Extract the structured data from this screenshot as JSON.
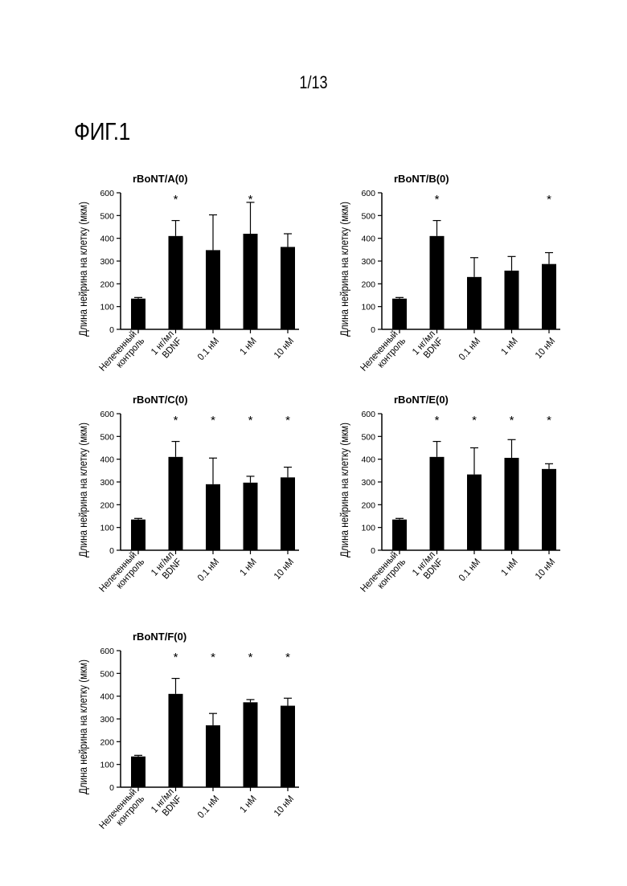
{
  "page": {
    "page_number": "1/13",
    "figure_label": "ФИГ.1"
  },
  "chart_data": [
    {
      "type": "bar",
      "title": "rBoNT/A(0)",
      "ylabel": "Длина нейрина на клетку (мкм)",
      "xlabel": "",
      "ylim": [
        0,
        600
      ],
      "yticks": [
        0,
        100,
        200,
        300,
        400,
        500,
        600
      ],
      "categories": [
        "Нелеченный контроль",
        "1 нг/мл BDNF",
        "0.1 нМ",
        "1 нМ",
        "10 нМ"
      ],
      "category_lines": [
        [
          "Нелеченный",
          "контроль"
        ],
        [
          "1 нг/мл",
          "BDNF"
        ],
        [
          "0.1 нМ"
        ],
        [
          "1 нМ"
        ],
        [
          "10 нМ"
        ]
      ],
      "values": [
        135,
        410,
        348,
        420,
        362
      ],
      "error_plus": [
        5,
        68,
        155,
        138,
        58
      ],
      "significance": [
        "",
        "*",
        "",
        "*",
        ""
      ],
      "bar_color": "#000000"
    },
    {
      "type": "bar",
      "title": "rBoNT/B(0)",
      "ylabel": "Длина нейрина на клетку (мкм)",
      "xlabel": "",
      "ylim": [
        0,
        600
      ],
      "yticks": [
        0,
        100,
        200,
        300,
        400,
        500,
        600
      ],
      "categories": [
        "Нелеченный контроль",
        "1 нг/мл BDNF",
        "0.1 нМ",
        "1 нМ",
        "10 нМ"
      ],
      "category_lines": [
        [
          "Нелеченный",
          "контроль"
        ],
        [
          "1 нг/мл",
          "BDNF"
        ],
        [
          "0.1 нМ"
        ],
        [
          "1 нМ"
        ],
        [
          "10 нМ"
        ]
      ],
      "values": [
        135,
        410,
        230,
        258,
        287
      ],
      "error_plus": [
        5,
        68,
        85,
        62,
        50
      ],
      "significance": [
        "",
        "*",
        "",
        "",
        "*"
      ],
      "bar_color": "#000000"
    },
    {
      "type": "bar",
      "title": "rBoNT/C(0)",
      "ylabel": "Длина нейрина на клетку (мкм)",
      "xlabel": "",
      "ylim": [
        0,
        600
      ],
      "yticks": [
        0,
        100,
        200,
        300,
        400,
        500,
        600
      ],
      "categories": [
        "Нелеченный контроль",
        "1 нг/мл BDNF",
        "0.1 нМ",
        "1 нМ",
        "10 нМ"
      ],
      "category_lines": [
        [
          "Нелеченный",
          "контроль"
        ],
        [
          "1 нг/мл",
          "BDNF"
        ],
        [
          "0.1 нМ"
        ],
        [
          "1 нМ"
        ],
        [
          "10 нМ"
        ]
      ],
      "values": [
        135,
        410,
        290,
        297,
        320
      ],
      "error_plus": [
        5,
        68,
        115,
        28,
        45
      ],
      "significance": [
        "",
        "*",
        "*",
        "*",
        "*"
      ],
      "bar_color": "#000000"
    },
    {
      "type": "bar",
      "title": "rBoNT/E(0)",
      "ylabel": "Длина нейрина на клетку (мкм)",
      "xlabel": "",
      "ylim": [
        0,
        600
      ],
      "yticks": [
        0,
        100,
        200,
        300,
        400,
        500,
        600
      ],
      "categories": [
        "Нелеченный контроль",
        "1 нг/мл BDNF",
        "0.1 нМ",
        "1 нМ",
        "10 нМ"
      ],
      "category_lines": [
        [
          "Нелеченный",
          "контроль"
        ],
        [
          "1 нг/мл",
          "BDNF"
        ],
        [
          "0.1 нМ"
        ],
        [
          "1 нМ"
        ],
        [
          "10 нМ"
        ]
      ],
      "values": [
        135,
        410,
        333,
        406,
        357
      ],
      "error_plus": [
        5,
        68,
        117,
        80,
        23
      ],
      "significance": [
        "",
        "*",
        "*",
        "*",
        "*"
      ],
      "bar_color": "#000000"
    },
    {
      "type": "bar",
      "title": "rBoNT/F(0)",
      "ylabel": "Длина нейрина на клетку (мкм)",
      "xlabel": "",
      "ylim": [
        0,
        600
      ],
      "yticks": [
        0,
        100,
        200,
        300,
        400,
        500,
        600
      ],
      "categories": [
        "Нелеченный контроль",
        "1 нг/мл BDNF",
        "0.1 нМ",
        "1 нМ",
        "10 нМ"
      ],
      "category_lines": [
        [
          "Нелеченный",
          "контроль"
        ],
        [
          "1 нг/мл",
          "BDNF"
        ],
        [
          "0.1 нМ"
        ],
        [
          "1 нМ"
        ],
        [
          "10 нМ"
        ]
      ],
      "values": [
        135,
        410,
        272,
        373,
        358
      ],
      "error_plus": [
        5,
        68,
        52,
        12,
        33
      ],
      "significance": [
        "",
        "*",
        "*",
        "*",
        "*"
      ],
      "bar_color": "#000000"
    }
  ]
}
